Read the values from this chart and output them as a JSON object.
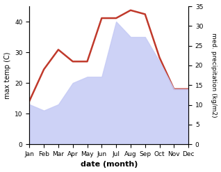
{
  "months": [
    "Jan",
    "Feb",
    "Mar",
    "Apr",
    "May",
    "Jun",
    "Jul",
    "Aug",
    "Sep",
    "Oct",
    "Nov",
    "Dec"
  ],
  "temperature": [
    13,
    11,
    13,
    20,
    22,
    22,
    40,
    35,
    35,
    27,
    18,
    18
  ],
  "precipitation": [
    11,
    19,
    24,
    21,
    21,
    32,
    32,
    34,
    33,
    22,
    14,
    14
  ],
  "temp_ylim": [
    0,
    45
  ],
  "precip_ylim": [
    0,
    35
  ],
  "temp_color_fill": "#c5caf5",
  "temp_fill_alpha": 0.85,
  "precip_color": "#c0392b",
  "xlabel": "date (month)",
  "ylabel_left": "max temp (C)",
  "ylabel_right": "med. precipitation (kg/m2)",
  "background_color": "#ffffff",
  "label_fontsize": 7,
  "tick_fontsize": 6.5
}
